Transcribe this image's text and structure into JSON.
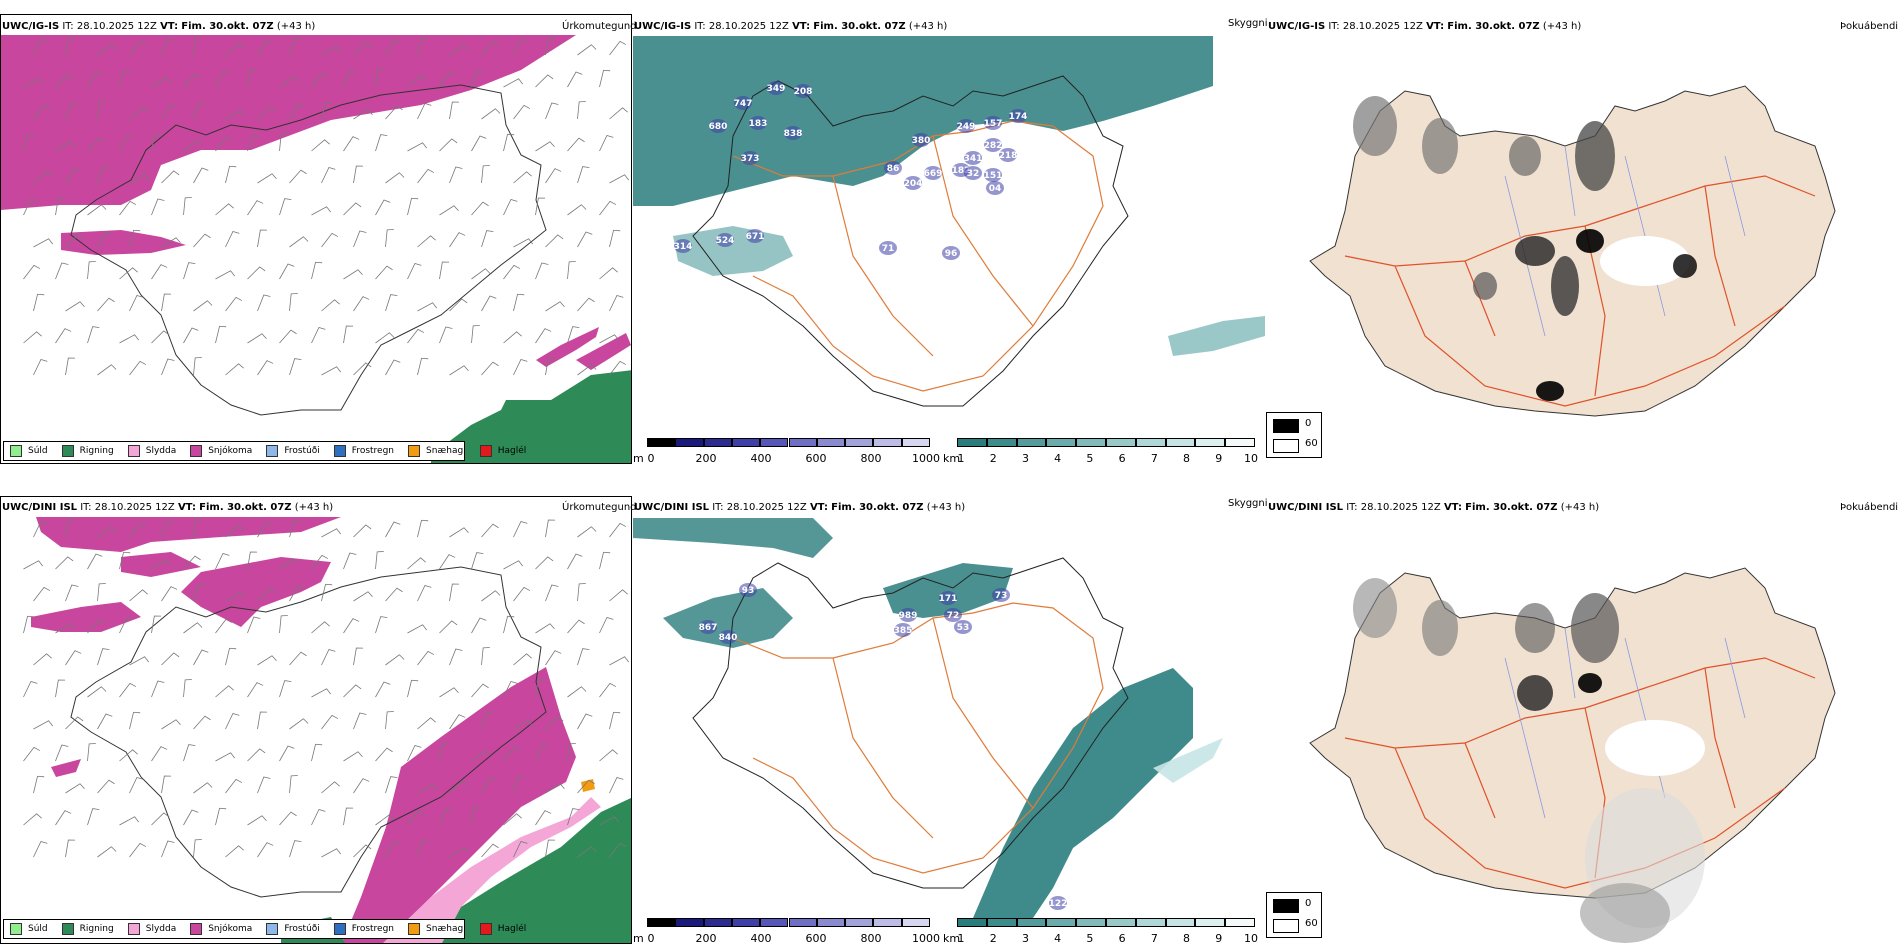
{
  "rows": [
    {
      "model": "UWC/IG-IS",
      "it_label": "IT:",
      "it_value": "28.10.2025 12Z",
      "vt_label": "VT:",
      "vt_value": "Fim. 30.okt. 07Z",
      "lead": "(+43 h)",
      "precip_values": [
        "747",
        "349",
        "208",
        "680",
        "183",
        "838",
        "373",
        "380",
        "249",
        "157",
        "174",
        "282",
        "218",
        "341",
        "182",
        "32",
        "151",
        "04",
        "86",
        "669",
        "204",
        "314",
        "524",
        "671",
        "71",
        "96"
      ]
    },
    {
      "model": "UWC/DINI ISL",
      "it_label": "IT:",
      "it_value": "28.10.2025 12Z",
      "vt_label": "VT:",
      "vt_value": "Fim. 30.okt. 07Z",
      "lead": "(+43 h)",
      "precip_values": [
        "93",
        "867",
        "840",
        "989",
        "171",
        "73",
        "385",
        "72",
        "53",
        "122"
      ]
    }
  ],
  "panel_titles": {
    "precip_type": "Úrkomutegund",
    "cloud": "Skyggni",
    "fog": "Þokuábendi"
  },
  "precip_legend": [
    {
      "label": "Súld",
      "color": "#90ee90"
    },
    {
      "label": "Rigning",
      "color": "#2e8b57"
    },
    {
      "label": "Slydda",
      "color": "#f4a6d7"
    },
    {
      "label": "Snjókoma",
      "color": "#c8469e"
    },
    {
      "label": "Frostúði",
      "color": "#8fb8e8"
    },
    {
      "label": "Frostregn",
      "color": "#2f6fc0"
    },
    {
      "label": "Snæhagl",
      "color": "#f39c12"
    },
    {
      "label": "Haglél",
      "color": "#e31a1c"
    }
  ],
  "cloudbase_scale": {
    "unit": "m",
    "ticks": [
      "0",
      "200",
      "400",
      "600",
      "800",
      "1000"
    ],
    "colors": [
      "#000000",
      "#1a1a7a",
      "#2b2b90",
      "#3f3fa8",
      "#5656b8",
      "#6f6fc4",
      "#8a8ad0",
      "#a3a3dc",
      "#bcbce6",
      "#d6d6f0"
    ]
  },
  "visibility_scale": {
    "unit": "km",
    "ticks": [
      "1",
      "2",
      "3",
      "4",
      "5",
      "6",
      "7",
      "8",
      "9",
      "10"
    ],
    "colors": [
      "#2a7d7d",
      "#3d8c8c",
      "#549c9c",
      "#6aabab",
      "#81baba",
      "#98c9c9",
      "#afd7d7",
      "#c6e4e4",
      "#ddf0f0",
      "#f4fafa"
    ]
  },
  "fog_legend": {
    "values": [
      "0",
      "60"
    ],
    "colors": [
      "#000000",
      "#ffffff"
    ]
  },
  "colors": {
    "snow": "#c8469e",
    "rain": "#2e8b57",
    "sleet": "#f4a6d7",
    "teal": "#2a7d7d",
    "roads": "#e07b39",
    "land": "#f1e1d1",
    "rivers": "#8a9ae0"
  }
}
